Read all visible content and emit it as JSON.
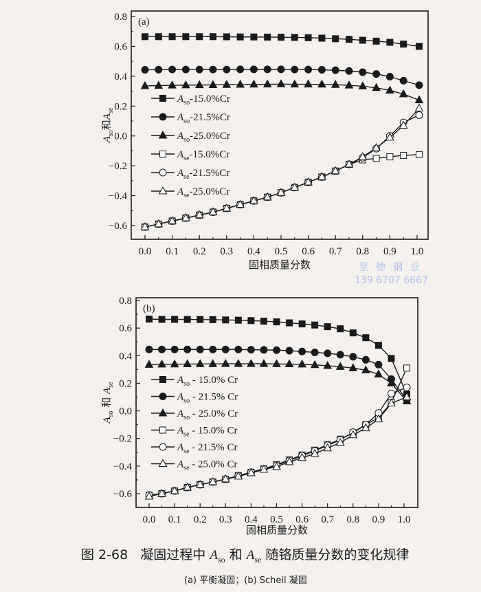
{
  "watermark": {
    "line1": "至德钢业",
    "line2": "139 6707 6667"
  },
  "caption": {
    "figure_no": "图 2-68",
    "text_pre": "凝固过程中",
    "sym1": "A",
    "sub1": "so",
    "mid": "和",
    "sym2": "A",
    "sub2": "se",
    "text_post": "随铬质量分数的变化规律",
    "subcaption": "(a) 平衡凝固；(b) Scheil 凝固"
  },
  "chart_data": [
    {
      "type": "line",
      "panel_label": "(a)",
      "xlabel": "固相质量分数",
      "ylabel": {
        "a1": "A",
        "s1": "so",
        "mid": "和",
        "a2": "A",
        "s2": "se"
      },
      "xlim": [
        0,
        1.0
      ],
      "ylim": [
        -0.7,
        0.8
      ],
      "xticks": [
        "0.0",
        "0.1",
        "0.2",
        "0.3",
        "0.4",
        "0.5",
        "0.6",
        "0.7",
        "0.8",
        "0.9",
        "1.0"
      ],
      "yticks": [
        "-0.6",
        "-0.4",
        "-0.2",
        "0.0",
        "0.2",
        "0.4",
        "0.6",
        "0.8"
      ],
      "legend_position": "center-left",
      "x": [
        0,
        0.05,
        0.1,
        0.15,
        0.2,
        0.25,
        0.3,
        0.35,
        0.4,
        0.45,
        0.5,
        0.55,
        0.6,
        0.65,
        0.7,
        0.75,
        0.8,
        0.85,
        0.9,
        0.95,
        1.0
      ],
      "series": [
        {
          "base": "A",
          "sub": "so",
          "suffix": "-15.0%Cr",
          "marker": "square",
          "filled": true,
          "values": [
            0.665,
            0.665,
            0.665,
            0.665,
            0.665,
            0.665,
            0.664,
            0.663,
            0.663,
            0.662,
            0.661,
            0.66,
            0.658,
            0.655,
            0.651,
            0.647,
            0.641,
            0.635,
            0.627,
            0.615,
            0.6
          ]
        },
        {
          "base": "A",
          "sub": "so",
          "suffix": "-21.5%Cr",
          "marker": "circle",
          "filled": true,
          "values": [
            0.443,
            0.444,
            0.445,
            0.445,
            0.445,
            0.445,
            0.445,
            0.446,
            0.446,
            0.446,
            0.446,
            0.445,
            0.445,
            0.443,
            0.44,
            0.435,
            0.427,
            0.415,
            0.397,
            0.37,
            0.34
          ]
        },
        {
          "base": "A",
          "sub": "so",
          "suffix": "-25.0%Cr",
          "marker": "triangle",
          "filled": true,
          "values": [
            0.335,
            0.337,
            0.339,
            0.34,
            0.341,
            0.342,
            0.343,
            0.344,
            0.345,
            0.346,
            0.347,
            0.346,
            0.346,
            0.345,
            0.343,
            0.339,
            0.333,
            0.322,
            0.305,
            0.28,
            0.24
          ]
        },
        {
          "base": "A",
          "sub": "se",
          "suffix": "-15.0%Cr",
          "marker": "square",
          "filled": false,
          "values": [
            -0.61,
            -0.59,
            -0.57,
            -0.55,
            -0.53,
            -0.51,
            -0.485,
            -0.46,
            -0.435,
            -0.41,
            -0.38,
            -0.345,
            -0.31,
            -0.275,
            -0.235,
            -0.19,
            -0.16,
            -0.15,
            -0.14,
            -0.13,
            -0.125
          ]
        },
        {
          "base": "A",
          "sub": "se",
          "suffix": "-21.5%Cr",
          "marker": "circle",
          "filled": false,
          "values": [
            -0.61,
            -0.59,
            -0.57,
            -0.55,
            -0.53,
            -0.51,
            -0.485,
            -0.46,
            -0.435,
            -0.41,
            -0.38,
            -0.345,
            -0.31,
            -0.275,
            -0.235,
            -0.19,
            -0.145,
            -0.085,
            0.0,
            0.09,
            0.14
          ]
        },
        {
          "base": "A",
          "sub": "se",
          "suffix": "-25.0%Cr",
          "marker": "triangle",
          "filled": false,
          "values": [
            -0.61,
            -0.59,
            -0.57,
            -0.55,
            -0.53,
            -0.51,
            -0.485,
            -0.46,
            -0.435,
            -0.41,
            -0.38,
            -0.345,
            -0.31,
            -0.275,
            -0.235,
            -0.19,
            -0.14,
            -0.08,
            -0.01,
            0.07,
            0.185
          ]
        }
      ]
    },
    {
      "type": "line",
      "panel_label": "(b)",
      "xlabel": "固相质量分数",
      "ylabel": {
        "a1": "A",
        "s1": "so",
        "mid": " 和 ",
        "a2": "A",
        "s2": "se"
      },
      "xlim": [
        0,
        1.0
      ],
      "ylim": [
        -0.7,
        0.8
      ],
      "xticks": [
        "0.0",
        "0.1",
        "0.2",
        "0.3",
        "0.4",
        "0.5",
        "0.6",
        "0.7",
        "0.8",
        "0.9",
        "1.0"
      ],
      "yticks": [
        "-0.6",
        "-0.4",
        "-0.2",
        "0.0",
        "0.2",
        "0.4",
        "0.6",
        "0.8"
      ],
      "legend_position": "center-left",
      "x": [
        0,
        0.05,
        0.1,
        0.15,
        0.2,
        0.25,
        0.3,
        0.35,
        0.4,
        0.45,
        0.5,
        0.55,
        0.6,
        0.65,
        0.7,
        0.75,
        0.8,
        0.85,
        0.9,
        0.95,
        1.0
      ],
      "series": [
        {
          "base": "A",
          "sub": "so",
          "suffix": " - 15.0% Cr",
          "marker": "square",
          "filled": true,
          "values": [
            0.665,
            0.663,
            0.663,
            0.662,
            0.662,
            0.661,
            0.659,
            0.657,
            0.654,
            0.65,
            0.645,
            0.638,
            0.63,
            0.622,
            0.61,
            0.595,
            0.565,
            0.53,
            0.475,
            0.38,
            0.12
          ]
        },
        {
          "base": "A",
          "sub": "so",
          "suffix": " - 21.5% Cr",
          "marker": "circle",
          "filled": true,
          "values": [
            0.445,
            0.445,
            0.445,
            0.445,
            0.445,
            0.445,
            0.445,
            0.445,
            0.443,
            0.442,
            0.44,
            0.436,
            0.43,
            0.424,
            0.417,
            0.407,
            0.392,
            0.37,
            0.335,
            0.23,
            0.08
          ]
        },
        {
          "base": "A",
          "sub": "so",
          "suffix": " - 25.0% Cr",
          "marker": "triangle",
          "filled": true,
          "values": [
            0.335,
            0.337,
            0.338,
            0.339,
            0.34,
            0.34,
            0.341,
            0.341,
            0.341,
            0.341,
            0.34,
            0.339,
            0.337,
            0.333,
            0.327,
            0.32,
            0.31,
            0.295,
            0.265,
            0.2,
            0.07
          ]
        },
        {
          "base": "A",
          "sub": "se",
          "suffix": " - 15.0% Cr",
          "marker": "square",
          "filled": false,
          "values": [
            -0.61,
            -0.6,
            -0.58,
            -0.555,
            -0.535,
            -0.515,
            -0.495,
            -0.47,
            -0.445,
            -0.42,
            -0.39,
            -0.355,
            -0.32,
            -0.285,
            -0.245,
            -0.205,
            -0.16,
            -0.1,
            -0.05,
            0.06,
            0.31
          ]
        },
        {
          "base": "A",
          "sub": "se",
          "suffix": " - 21.5% Cr",
          "marker": "circle",
          "filled": false,
          "values": [
            -0.61,
            -0.6,
            -0.58,
            -0.555,
            -0.535,
            -0.515,
            -0.495,
            -0.47,
            -0.445,
            -0.42,
            -0.395,
            -0.36,
            -0.325,
            -0.29,
            -0.25,
            -0.21,
            -0.155,
            -0.1,
            -0.015,
            0.125,
            0.17
          ]
        },
        {
          "base": "A",
          "sub": "se",
          "suffix": " - 25.0% Cr",
          "marker": "triangle",
          "filled": false,
          "values": [
            -0.62,
            -0.6,
            -0.58,
            -0.555,
            -0.535,
            -0.515,
            -0.495,
            -0.475,
            -0.45,
            -0.425,
            -0.405,
            -0.37,
            -0.34,
            -0.31,
            -0.27,
            -0.23,
            -0.175,
            -0.125,
            -0.06,
            0.055,
            0.1
          ]
        }
      ]
    }
  ]
}
